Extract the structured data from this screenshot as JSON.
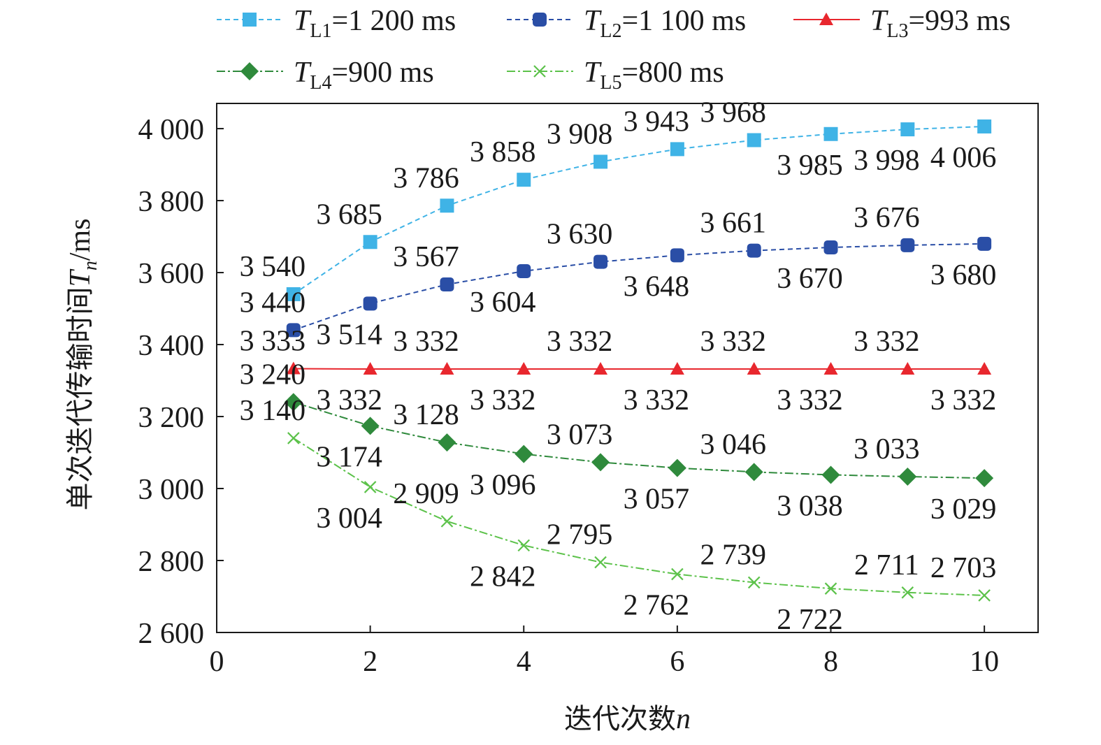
{
  "chart_data": {
    "type": "line",
    "title": "",
    "xlabel": {
      "text": "迭代次数",
      "var": "n"
    },
    "ylabel": {
      "text": "单次迭代传输时间",
      "var": "T",
      "sub": "n",
      "unit": "/ms"
    },
    "xlim": [
      0,
      10.7
    ],
    "ylim": [
      2600,
      4070
    ],
    "xticks": [
      0,
      2,
      4,
      6,
      8,
      10
    ],
    "xtick_labels": [
      "0",
      "2",
      "4",
      "6",
      "8",
      "10"
    ],
    "yticks": [
      2600,
      2800,
      3000,
      3200,
      3400,
      3600,
      3800,
      4000
    ],
    "ytick_labels": [
      "2 600",
      "2 800",
      "3 000",
      "3 200",
      "3 400",
      "3 600",
      "3 800",
      "4 000"
    ],
    "legend_position": "top",
    "x": [
      1,
      2,
      3,
      4,
      5,
      6,
      7,
      8,
      9,
      10
    ],
    "series": [
      {
        "name": "T_L1=1 200 ms",
        "var": "T",
        "sub": "L1",
        "rest": "=1 200 ms",
        "color": "#3fb3e6",
        "marker": "square",
        "dash": "dashed",
        "values": [
          3540,
          3685,
          3786,
          3858,
          3908,
          3943,
          3968,
          3985,
          3998,
          4006
        ],
        "labels": [
          "3 540",
          "3 685",
          "3 786",
          "3 858",
          "3 908",
          "3 943",
          "3 968",
          "3 985",
          "3 998",
          "4 006"
        ],
        "label_pos": [
          "above",
          "above",
          "above",
          "above",
          "above",
          "above",
          "above",
          "below",
          "below",
          "below"
        ]
      },
      {
        "name": "T_L2=1 100 ms",
        "var": "T",
        "sub": "L2",
        "rest": "=1 100 ms",
        "color": "#2a4ea6",
        "marker": "rsquare",
        "dash": "dashed",
        "values": [
          3440,
          3514,
          3567,
          3604,
          3630,
          3648,
          3661,
          3670,
          3676,
          3680
        ],
        "labels": [
          "3 440",
          "3 514",
          "3 567",
          "3 604",
          "3 630",
          "3 648",
          "3 661",
          "3 670",
          "3 676",
          "3 680"
        ],
        "label_pos": [
          "above",
          "below",
          "above",
          "below",
          "above",
          "below",
          "above",
          "below",
          "above",
          "below"
        ]
      },
      {
        "name": "T_L3=993 ms",
        "var": "T",
        "sub": "L3",
        "rest": "=993 ms",
        "color": "#e8272e",
        "marker": "triangle",
        "dash": "solid",
        "values": [
          3333,
          3332,
          3332,
          3332,
          3332,
          3332,
          3332,
          3332,
          3332,
          3332
        ],
        "labels": [
          "3 333",
          "3 332",
          "3 332",
          "3 332",
          "3 332",
          "3 332",
          "3 332",
          "3 332",
          "3 332",
          "3 332"
        ],
        "label_pos": [
          "above",
          "below",
          "above",
          "below",
          "above",
          "below",
          "above",
          "below",
          "above",
          "below"
        ]
      },
      {
        "name": "T_L4=900 ms",
        "var": "T",
        "sub": "L4",
        "rest": "=900 ms",
        "color": "#2f8a3c",
        "marker": "diamond",
        "dash": "dashdot",
        "values": [
          3240,
          3174,
          3128,
          3096,
          3073,
          3057,
          3046,
          3038,
          3033,
          3029
        ],
        "labels": [
          "3 240",
          "3 174",
          "3 128",
          "3 096",
          "3 073",
          "3 057",
          "3 046",
          "3 038",
          "3 033",
          "3 029"
        ],
        "label_pos": [
          "above",
          "below",
          "above",
          "below",
          "above",
          "below",
          "above",
          "below",
          "above",
          "below"
        ]
      },
      {
        "name": "T_L5=800 ms",
        "var": "T",
        "sub": "L5",
        "rest": "=800 ms",
        "color": "#5cc24a",
        "marker": "x",
        "dash": "dashdot",
        "values": [
          3140,
          3004,
          2909,
          2842,
          2795,
          2762,
          2739,
          2722,
          2711,
          2703
        ],
        "labels": [
          "3 140",
          "3 004",
          "2 909",
          "2 842",
          "2 795",
          "2 762",
          "2 739",
          "2 722",
          "2 711",
          "2 703"
        ],
        "label_pos": [
          "above",
          "below",
          "above",
          "below",
          "above",
          "below",
          "above",
          "below",
          "above",
          "above"
        ]
      }
    ]
  }
}
